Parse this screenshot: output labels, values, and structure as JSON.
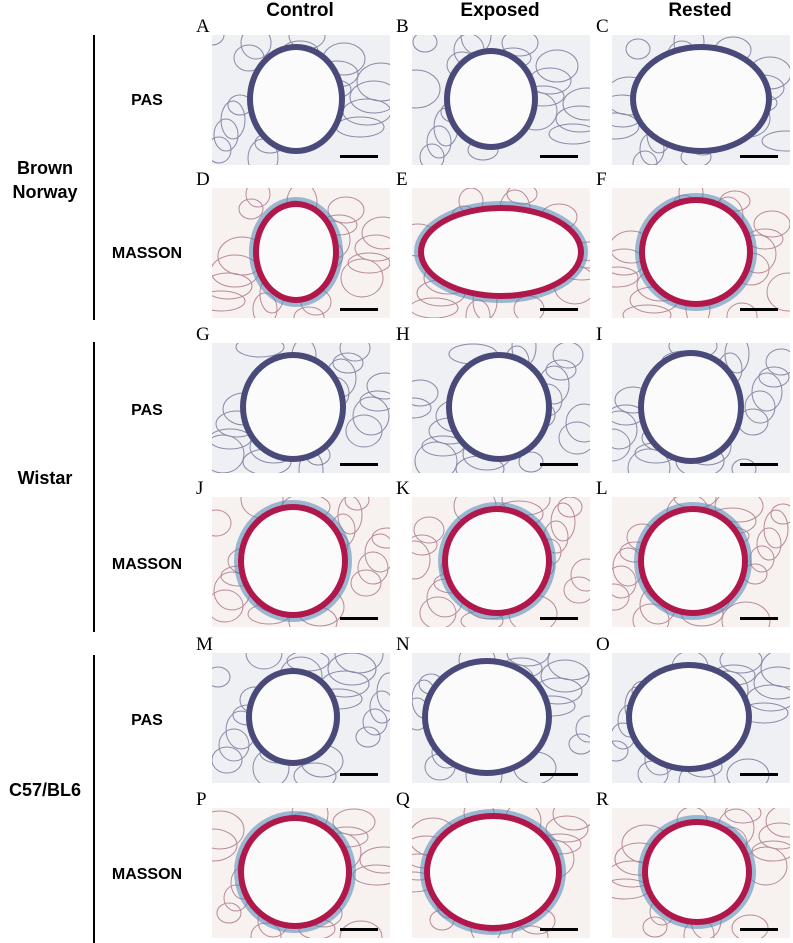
{
  "columns": [
    "Control",
    "Exposed",
    "Rested"
  ],
  "groups": [
    {
      "name_line1": "Brown",
      "name_line2": "Norway"
    },
    {
      "name_line1": "Wistar",
      "name_line2": ""
    },
    {
      "name_line1": "C57/BL6",
      "name_line2": ""
    }
  ],
  "stains": {
    "pas": "PAS",
    "masson": "MASSON"
  },
  "panel_letters": [
    "A",
    "B",
    "C",
    "D",
    "E",
    "F",
    "G",
    "H",
    "I",
    "J",
    "K",
    "L",
    "M",
    "N",
    "O",
    "P",
    "Q",
    "R"
  ],
  "colors": {
    "pas_background": "#eef0f3",
    "pas_tissue": "#4a4a7a",
    "masson_background": "#f7f2f0",
    "masson_epithelium": "#b0174a",
    "masson_collagen": "#4f86b8",
    "lumen": "#fbfbfb"
  }
}
